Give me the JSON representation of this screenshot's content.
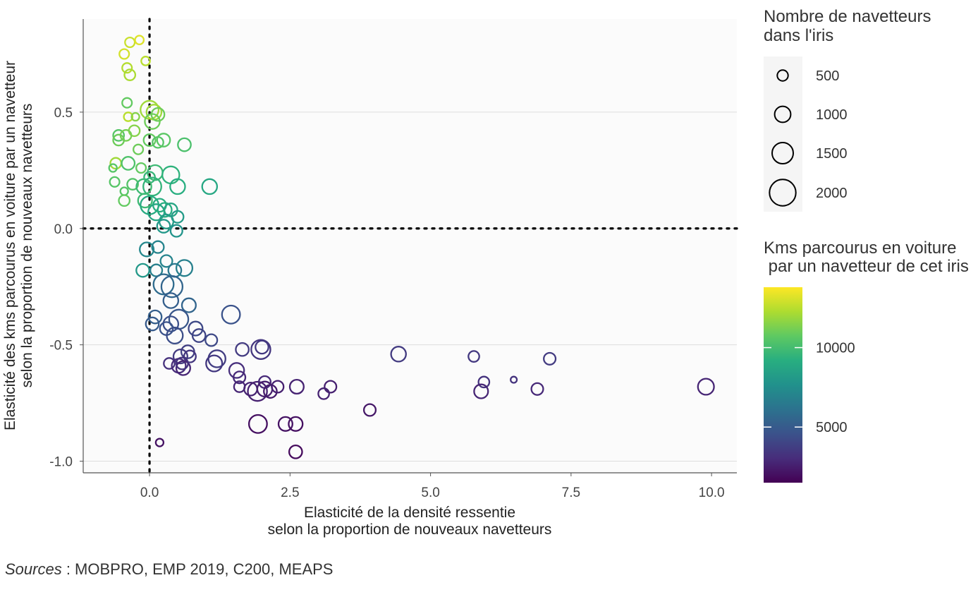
{
  "chart_data": {
    "type": "scatter",
    "xlabel": [
      "Elasticité de la densité ressentie",
      "selon la proportion de nouveaux navetteurs"
    ],
    "ylabel": [
      "Elasticité des kms parcourus en voiture par un navetteur",
      "selon la proportion de nouveaux navetteurs"
    ],
    "xlim": [
      -1.18,
      10.45
    ],
    "ylim": [
      -1.05,
      0.9
    ],
    "xticks": [
      0.0,
      2.5,
      5.0,
      7.5,
      10.0
    ],
    "xtick_labels": [
      "0.0",
      "2.5",
      "5.0",
      "7.5",
      "10.0"
    ],
    "yticks": [
      0.5,
      0.0,
      -0.5,
      -1.0
    ],
    "ytick_labels": [
      "0.5",
      "0.0",
      "-0.5",
      "-1.0"
    ],
    "reference_lines": {
      "x": 0,
      "y": 0,
      "style": "dotted"
    },
    "grid": "horizontal",
    "size_legend": {
      "title": [
        "Nombre de navetteurs",
        "dans l'iris"
      ],
      "values": [
        500,
        1000,
        1500,
        2000
      ],
      "labels": [
        "500",
        "1000",
        "1500",
        "2000"
      ]
    },
    "color_legend": {
      "title": [
        "Kms parcourus en voiture",
        " par un navetteur de cet iris"
      ],
      "min": 1500,
      "max": 13800,
      "ticks": [
        10000,
        5000
      ],
      "tick_labels": [
        "10000",
        "5000"
      ],
      "palette": "viridis"
    },
    "points": [
      {
        "x": -0.35,
        "y": 0.8,
        "n": 400,
        "c": 12800
      },
      {
        "x": -0.18,
        "y": 0.81,
        "n": 300,
        "c": 13200
      },
      {
        "x": -0.45,
        "y": 0.75,
        "n": 400,
        "c": 13000
      },
      {
        "x": -0.07,
        "y": 0.72,
        "n": 300,
        "c": 12500
      },
      {
        "x": -0.4,
        "y": 0.69,
        "n": 400,
        "c": 12400
      },
      {
        "x": -0.35,
        "y": 0.66,
        "n": 500,
        "c": 12200
      },
      {
        "x": -0.4,
        "y": 0.54,
        "n": 400,
        "c": 10800
      },
      {
        "x": 0.0,
        "y": 0.51,
        "n": 1200,
        "c": 12000
      },
      {
        "x": 0.08,
        "y": 0.5,
        "n": 900,
        "c": 12000
      },
      {
        "x": 0.15,
        "y": 0.49,
        "n": 700,
        "c": 11000
      },
      {
        "x": -0.38,
        "y": 0.48,
        "n": 300,
        "c": 12500
      },
      {
        "x": -0.25,
        "y": 0.48,
        "n": 200,
        "c": 11500
      },
      {
        "x": 0.05,
        "y": 0.46,
        "n": 900,
        "c": 11000
      },
      {
        "x": -0.27,
        "y": 0.42,
        "n": 500,
        "c": 11500
      },
      {
        "x": -0.55,
        "y": 0.4,
        "n": 500,
        "c": 10500
      },
      {
        "x": -0.42,
        "y": 0.4,
        "n": 500,
        "c": 11200
      },
      {
        "x": -0.55,
        "y": 0.38,
        "n": 500,
        "c": 11000
      },
      {
        "x": 0.0,
        "y": 0.38,
        "n": 600,
        "c": 10800
      },
      {
        "x": 0.15,
        "y": 0.37,
        "n": 500,
        "c": 10500
      },
      {
        "x": 0.25,
        "y": 0.38,
        "n": 700,
        "c": 10600
      },
      {
        "x": 0.62,
        "y": 0.36,
        "n": 700,
        "c": 10200
      },
      {
        "x": -0.2,
        "y": 0.34,
        "n": 400,
        "c": 11000
      },
      {
        "x": -0.6,
        "y": 0.28,
        "n": 500,
        "c": 12000
      },
      {
        "x": -0.65,
        "y": 0.26,
        "n": 200,
        "c": 10500
      },
      {
        "x": -0.38,
        "y": 0.28,
        "n": 700,
        "c": 10300
      },
      {
        "x": -0.15,
        "y": 0.26,
        "n": 400,
        "c": 10800
      },
      {
        "x": 0.1,
        "y": 0.24,
        "n": 900,
        "c": 9800
      },
      {
        "x": 0.38,
        "y": 0.23,
        "n": 1100,
        "c": 9400
      },
      {
        "x": 0.0,
        "y": 0.22,
        "n": 500,
        "c": 9600
      },
      {
        "x": -0.62,
        "y": 0.2,
        "n": 400,
        "c": 10500
      },
      {
        "x": -0.3,
        "y": 0.19,
        "n": 500,
        "c": 10400
      },
      {
        "x": -0.1,
        "y": 0.18,
        "n": 900,
        "c": 9800
      },
      {
        "x": 0.05,
        "y": 0.18,
        "n": 1200,
        "c": 9500
      },
      {
        "x": 0.5,
        "y": 0.18,
        "n": 900,
        "c": 9200
      },
      {
        "x": 1.07,
        "y": 0.18,
        "n": 900,
        "c": 8800
      },
      {
        "x": -0.45,
        "y": 0.16,
        "n": 200,
        "c": 10500
      },
      {
        "x": -0.45,
        "y": 0.12,
        "n": 500,
        "c": 10800
      },
      {
        "x": -0.08,
        "y": 0.12,
        "n": 800,
        "c": 9800
      },
      {
        "x": 0.0,
        "y": 0.1,
        "n": 1200,
        "c": 9000
      },
      {
        "x": 0.18,
        "y": 0.1,
        "n": 700,
        "c": 9200
      },
      {
        "x": 0.27,
        "y": 0.08,
        "n": 800,
        "c": 9100
      },
      {
        "x": 0.38,
        "y": 0.08,
        "n": 700,
        "c": 8700
      },
      {
        "x": 0.12,
        "y": 0.07,
        "n": 1000,
        "c": 8800
      },
      {
        "x": 0.3,
        "y": 0.03,
        "n": 800,
        "c": 8200
      },
      {
        "x": 0.5,
        "y": 0.05,
        "n": 600,
        "c": 8200
      },
      {
        "x": 0.48,
        "y": -0.01,
        "n": 600,
        "c": 7800
      },
      {
        "x": 0.25,
        "y": 0.01,
        "n": 700,
        "c": 8000
      },
      {
        "x": -0.05,
        "y": -0.09,
        "n": 800,
        "c": 7200
      },
      {
        "x": 0.15,
        "y": -0.08,
        "n": 600,
        "c": 7000
      },
      {
        "x": -0.12,
        "y": -0.18,
        "n": 700,
        "c": 8000
      },
      {
        "x": 0.3,
        "y": -0.14,
        "n": 600,
        "c": 7000
      },
      {
        "x": 0.12,
        "y": -0.18,
        "n": 600,
        "c": 6800
      },
      {
        "x": 0.45,
        "y": -0.18,
        "n": 700,
        "c": 6400
      },
      {
        "x": 0.62,
        "y": -0.17,
        "n": 1000,
        "c": 6800
      },
      {
        "x": 0.25,
        "y": -0.24,
        "n": 1400,
        "c": 5800
      },
      {
        "x": 0.4,
        "y": -0.25,
        "n": 1500,
        "c": 5500
      },
      {
        "x": 0.38,
        "y": -0.31,
        "n": 900,
        "c": 5200
      },
      {
        "x": 0.7,
        "y": -0.33,
        "n": 800,
        "c": 5500
      },
      {
        "x": 0.52,
        "y": -0.39,
        "n": 1300,
        "c": 4800
      },
      {
        "x": 0.1,
        "y": -0.38,
        "n": 700,
        "c": 5200
      },
      {
        "x": 0.05,
        "y": -0.41,
        "n": 700,
        "c": 5000
      },
      {
        "x": 0.38,
        "y": -0.41,
        "n": 900,
        "c": 4500
      },
      {
        "x": 0.3,
        "y": -0.43,
        "n": 700,
        "c": 4600
      },
      {
        "x": 0.82,
        "y": -0.43,
        "n": 800,
        "c": 4200
      },
      {
        "x": 0.88,
        "y": -0.46,
        "n": 700,
        "c": 4000
      },
      {
        "x": 0.45,
        "y": -0.46,
        "n": 1000,
        "c": 4400
      },
      {
        "x": 1.45,
        "y": -0.37,
        "n": 1200,
        "c": 4600
      },
      {
        "x": 1.1,
        "y": -0.48,
        "n": 600,
        "c": 4200
      },
      {
        "x": 0.68,
        "y": -0.53,
        "n": 700,
        "c": 3800
      },
      {
        "x": 0.55,
        "y": -0.55,
        "n": 800,
        "c": 3600
      },
      {
        "x": 0.72,
        "y": -0.55,
        "n": 600,
        "c": 3400
      },
      {
        "x": 1.2,
        "y": -0.56,
        "n": 1100,
        "c": 3700
      },
      {
        "x": 1.15,
        "y": -0.58,
        "n": 1000,
        "c": 3500
      },
      {
        "x": 0.35,
        "y": -0.58,
        "n": 500,
        "c": 3200
      },
      {
        "x": 0.52,
        "y": -0.59,
        "n": 800,
        "c": 3000
      },
      {
        "x": 0.6,
        "y": -0.6,
        "n": 800,
        "c": 2800
      },
      {
        "x": 0.58,
        "y": -0.58,
        "n": 600,
        "c": 3300
      },
      {
        "x": 1.65,
        "y": -0.52,
        "n": 700,
        "c": 3600
      },
      {
        "x": 1.98,
        "y": -0.52,
        "n": 1300,
        "c": 3400
      },
      {
        "x": 2.0,
        "y": -0.51,
        "n": 700,
        "c": 3500
      },
      {
        "x": 1.55,
        "y": -0.61,
        "n": 900,
        "c": 3100
      },
      {
        "x": 1.6,
        "y": -0.64,
        "n": 600,
        "c": 2900
      },
      {
        "x": 1.6,
        "y": -0.68,
        "n": 500,
        "c": 2800
      },
      {
        "x": 1.8,
        "y": -0.69,
        "n": 700,
        "c": 2700
      },
      {
        "x": 1.92,
        "y": -0.7,
        "n": 1300,
        "c": 2600
      },
      {
        "x": 2.05,
        "y": -0.66,
        "n": 600,
        "c": 2900
      },
      {
        "x": 2.05,
        "y": -0.69,
        "n": 900,
        "c": 2500
      },
      {
        "x": 2.15,
        "y": -0.7,
        "n": 700,
        "c": 2400
      },
      {
        "x": 2.28,
        "y": -0.68,
        "n": 600,
        "c": 2600
      },
      {
        "x": 2.62,
        "y": -0.68,
        "n": 800,
        "c": 2700
      },
      {
        "x": 3.22,
        "y": -0.68,
        "n": 600,
        "c": 2600
      },
      {
        "x": 3.1,
        "y": -0.71,
        "n": 500,
        "c": 2700
      },
      {
        "x": 3.92,
        "y": -0.78,
        "n": 600,
        "c": 2300
      },
      {
        "x": 1.93,
        "y": -0.84,
        "n": 1200,
        "c": 2000
      },
      {
        "x": 2.42,
        "y": -0.84,
        "n": 800,
        "c": 2100
      },
      {
        "x": 2.6,
        "y": -0.84,
        "n": 800,
        "c": 2000
      },
      {
        "x": 2.6,
        "y": -0.96,
        "n": 700,
        "c": 1800
      },
      {
        "x": 0.18,
        "y": -0.92,
        "n": 200,
        "c": 2100
      },
      {
        "x": 4.43,
        "y": -0.54,
        "n": 900,
        "c": 3600
      },
      {
        "x": 5.77,
        "y": -0.55,
        "n": 500,
        "c": 3500
      },
      {
        "x": 5.95,
        "y": -0.66,
        "n": 500,
        "c": 3300
      },
      {
        "x": 5.9,
        "y": -0.7,
        "n": 800,
        "c": 2800
      },
      {
        "x": 6.48,
        "y": -0.65,
        "n": 50,
        "c": 3300
      },
      {
        "x": 6.9,
        "y": -0.69,
        "n": 600,
        "c": 2900
      },
      {
        "x": 7.12,
        "y": -0.56,
        "n": 600,
        "c": 3600
      },
      {
        "x": 9.9,
        "y": -0.68,
        "n": 1000,
        "c": 2800
      }
    ]
  },
  "source": {
    "label": "Sources",
    "text": " : MOBPRO, EMP 2019, C200, MEAPS"
  }
}
